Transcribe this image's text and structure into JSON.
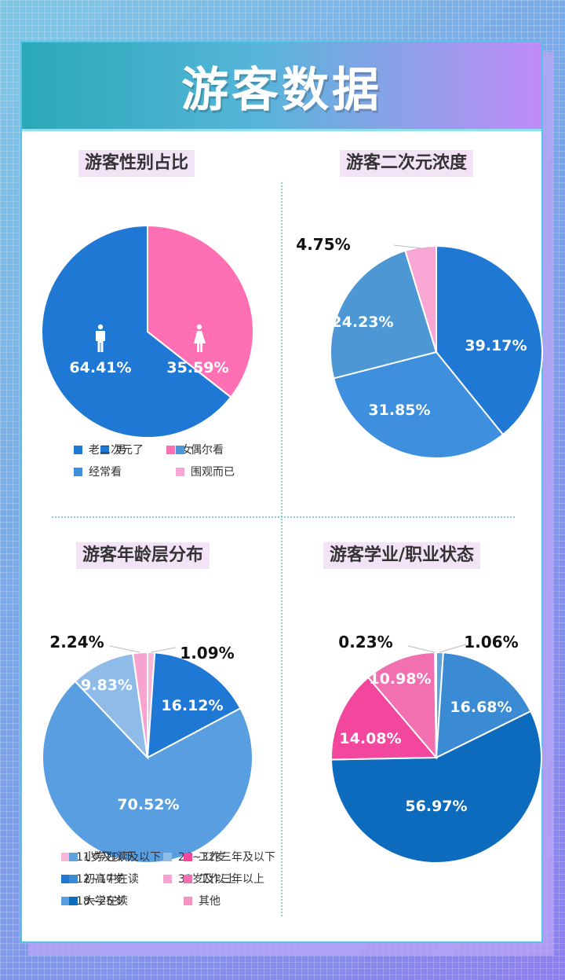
{
  "page": {
    "title": "游客数据"
  },
  "chart_data": [
    {
      "type": "pie",
      "title": "游客性别占比",
      "categories": [
        "男",
        "女"
      ],
      "values": [
        64.41,
        35.59
      ],
      "value_labels": [
        "64.41%",
        "35.59%"
      ],
      "colors": [
        "#1f78d4",
        "#ff6fb3"
      ],
      "icons": [
        "male-icon",
        "female-icon"
      ]
    },
    {
      "type": "pie",
      "title": "游客二次元浓度",
      "categories": [
        "老二次元了",
        "经常看",
        "偶尔看",
        "围观而已"
      ],
      "values": [
        39.17,
        31.85,
        24.23,
        4.75
      ],
      "value_labels": [
        "39.17%",
        "31.85%",
        "24.23%",
        "4.75%"
      ],
      "colors": [
        "#1f78d4",
        "#3f8fdf",
        "#4d98d4",
        "#f8a6d3"
      ]
    },
    {
      "type": "pie",
      "title": "游客年龄层分布",
      "categories": [
        "11岁及以下",
        "12~17岁",
        "18~25岁",
        "26~32岁",
        "33岁及以上"
      ],
      "values": [
        1.09,
        16.12,
        70.52,
        9.83,
        2.24
      ],
      "value_labels": [
        "1.09%",
        "16.12%",
        "70.52%",
        "9.83%",
        "2.24%"
      ],
      "colors": [
        "#f8b6d8",
        "#1f78d4",
        "#5a9ee2",
        "#8fbbe8",
        "#f7a3cf"
      ]
    },
    {
      "type": "pie",
      "title": "游客学业/职业状态",
      "categories": [
        "小学在读及以下",
        "初高中在读",
        "大学在读",
        "工作三年及以下",
        "工作三年以上",
        "其他"
      ],
      "values": [
        1.06,
        16.68,
        56.97,
        14.08,
        10.98,
        0.23
      ],
      "value_labels": [
        "1.06%",
        "16.68%",
        "56.97%",
        "14.08%",
        "10.98%",
        "0.23%"
      ],
      "colors": [
        "#5ea3dd",
        "#3b8ad4",
        "#0c6bbd",
        "#f2479c",
        "#f26fb0",
        "#f790c4"
      ]
    }
  ]
}
